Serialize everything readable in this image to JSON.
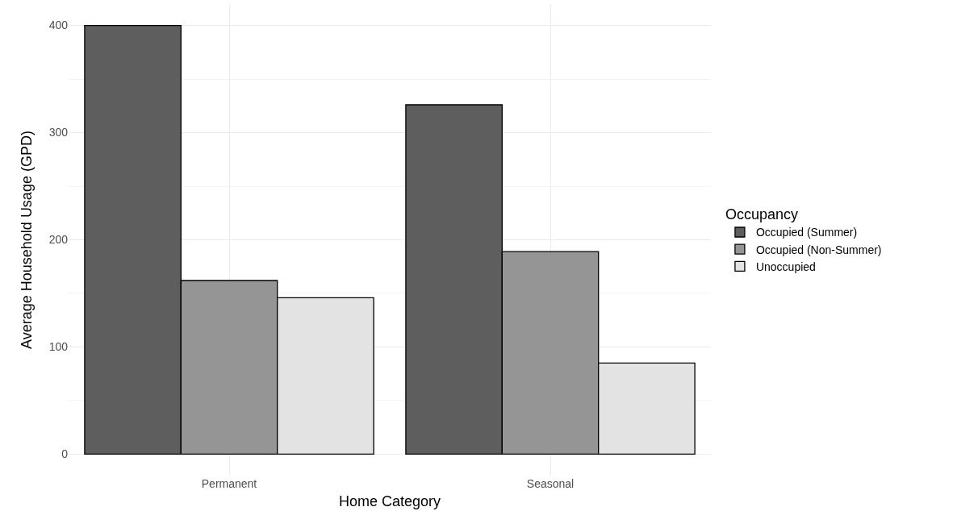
{
  "chart_data": {
    "type": "bar",
    "xlabel": "Home Category",
    "ylabel": "Average Household Usage (GPD)",
    "legend_title": "Occupancy",
    "categories": [
      "Permanent",
      "Seasonal"
    ],
    "series": [
      {
        "name": "Occupied (Summer)",
        "color": "#5e5e5e",
        "values": [
          400,
          326
        ]
      },
      {
        "name": "Occupied (Non-Summer)",
        "color": "#959595",
        "values": [
          162,
          189
        ]
      },
      {
        "name": "Unoccupied",
        "color": "#e3e3e3",
        "values": [
          146,
          85
        ]
      }
    ],
    "ylim": [
      -20,
      420
    ],
    "yticks": [
      0,
      100,
      200,
      300,
      400
    ],
    "grid": true,
    "legend": "right"
  }
}
